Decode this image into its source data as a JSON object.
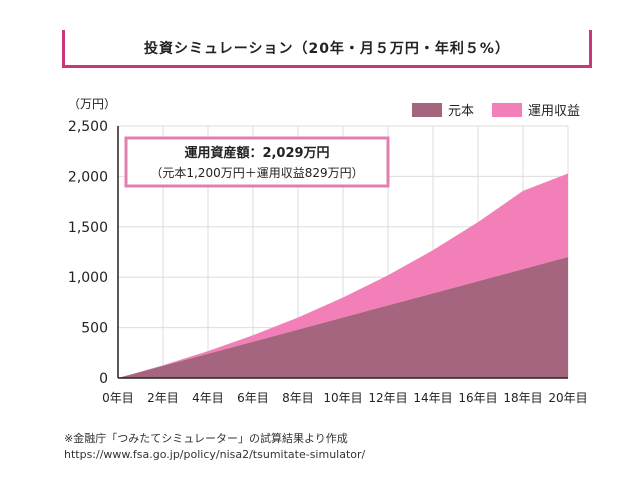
{
  "title": "投資シミュレーション（20年・月５万円・年利５%）",
  "chart_data": {
    "type": "area",
    "unit_label": "（万円）",
    "x": [
      "0年目",
      "2年目",
      "4年目",
      "6年目",
      "8年目",
      "10年目",
      "12年目",
      "14年目",
      "16年目",
      "18年目",
      "20年目"
    ],
    "ylim": [
      0,
      2500
    ],
    "yticks": [
      0,
      500,
      1000,
      1500,
      2000,
      2500
    ],
    "ytick_labels": [
      "0",
      "500",
      "1,000",
      "1,500",
      "2,000",
      "2,500"
    ],
    "grid": true,
    "legend_position": "top-right",
    "series": [
      {
        "name": "元本",
        "color": "#a5657e",
        "values": [
          0,
          120,
          240,
          360,
          480,
          600,
          720,
          840,
          960,
          1080,
          1200
        ]
      },
      {
        "name": "運用収益",
        "color": "#f37fb8",
        "values": [
          0,
          6,
          26,
          64,
          120,
          198,
          299,
          428,
          586,
          777,
          829
        ]
      }
    ],
    "annotation": {
      "line1": "運用資産額：2,029万円",
      "line2": "（元本1,200万円＋運用収益829万円）",
      "border_color": "#e07fb0"
    }
  },
  "footnote": {
    "line1": "※金融庁「つみたてシミュレーター」の試算結果より作成",
    "line2": "https://www.fsa.go.jp/policy/nisa2/tsumitate-simulator/"
  }
}
